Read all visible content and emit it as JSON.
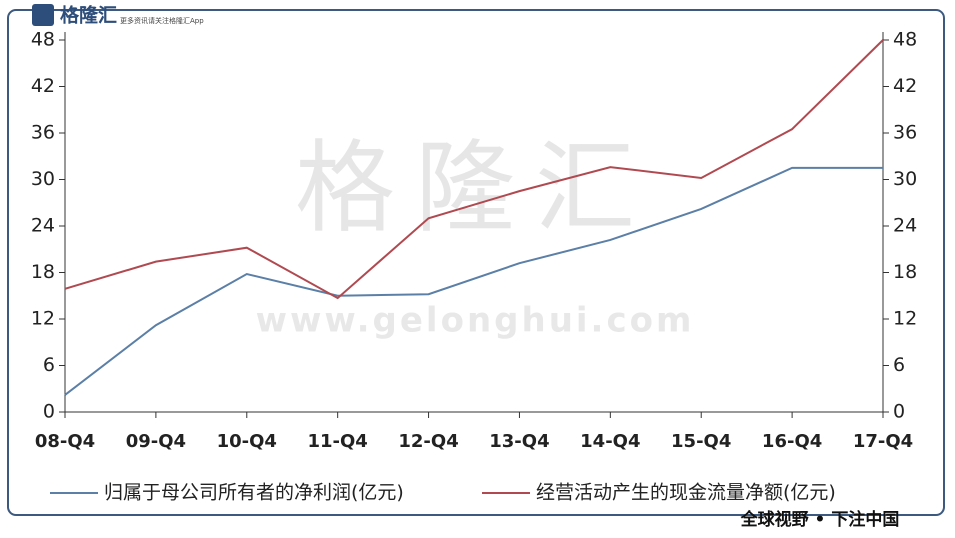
{
  "chart_data": {
    "type": "line",
    "categories": [
      "08-Q4",
      "09-Q4",
      "10-Q4",
      "11-Q4",
      "12-Q4",
      "13-Q4",
      "14-Q4",
      "15-Q4",
      "16-Q4",
      "17-Q4"
    ],
    "series": [
      {
        "name": "归属于母公司所有者的净利润(亿元)",
        "color": "#5b7fa6",
        "values": [
          2.2,
          11.2,
          17.8,
          15.0,
          15.2,
          19.2,
          22.2,
          26.2,
          31.5,
          31.5
        ]
      },
      {
        "name": "经营活动产生的现金流量净额(亿元)",
        "color": "#b04a50",
        "values": [
          15.9,
          19.4,
          21.2,
          14.7,
          25.0,
          28.5,
          31.6,
          30.2,
          36.5,
          48
        ]
      }
    ],
    "ylim": [
      0,
      48
    ],
    "yticks": [
      0,
      6,
      12,
      18,
      24,
      30,
      36,
      42,
      48
    ],
    "y2lim": [
      0,
      48
    ],
    "y2ticks": [
      0,
      6,
      12,
      18,
      24,
      30,
      36,
      42,
      48
    ],
    "legend": "bottom"
  },
  "branding": {
    "logo": "格隆汇",
    "slogan_small": "更多资讯请关注格隆汇App",
    "watermark": "格隆汇",
    "website": "www.gelonghui.com",
    "footer": "全球视野 • 下注中国"
  }
}
